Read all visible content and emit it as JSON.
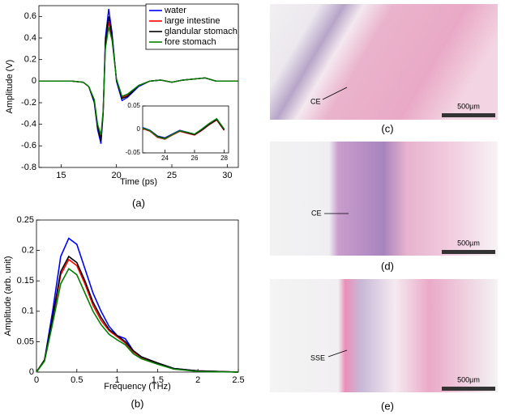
{
  "chart_data": [
    {
      "type": "line",
      "caption": "(a)",
      "x_label": "Time (ps)",
      "y_label": "Amplitude (V)",
      "x": [
        13,
        14,
        15,
        16,
        17,
        17.5,
        18,
        18.3,
        18.6,
        18.8,
        19,
        19.3,
        19.6,
        20,
        20.5,
        21,
        22,
        23,
        24,
        25,
        26,
        27,
        28,
        29,
        30,
        31
      ],
      "xlim": [
        13,
        31
      ],
      "ylim": [
        -0.8,
        0.7
      ],
      "xticks": [
        15,
        20,
        25,
        30
      ],
      "yticks": [
        -0.8,
        -0.6,
        -0.4,
        -0.2,
        0,
        0.2,
        0.4,
        0.6
      ],
      "legend": "upper right",
      "series": [
        {
          "name": "water",
          "color": "#0000ff",
          "values": [
            0,
            0,
            0,
            0,
            -0.01,
            -0.05,
            -0.2,
            -0.45,
            -0.58,
            -0.3,
            0.4,
            0.67,
            0.45,
            0,
            -0.18,
            -0.15,
            -0.05,
            0,
            0.01,
            -0.01,
            0.01,
            0.02,
            0.03,
            0,
            0,
            0
          ]
        },
        {
          "name": "large intestine",
          "color": "#ff0000",
          "values": [
            0,
            0,
            0,
            0,
            -0.01,
            -0.05,
            -0.18,
            -0.42,
            -0.53,
            -0.28,
            0.33,
            0.55,
            0.4,
            0.02,
            -0.15,
            -0.13,
            -0.04,
            0,
            0.01,
            -0.01,
            0.01,
            0.02,
            0.03,
            0,
            0,
            0
          ]
        },
        {
          "name": "glandular stomach",
          "color": "#000000",
          "values": [
            0,
            0,
            0,
            0,
            -0.01,
            -0.05,
            -0.19,
            -0.43,
            -0.55,
            -0.29,
            0.36,
            0.6,
            0.42,
            0.01,
            -0.16,
            -0.14,
            -0.04,
            0,
            0.01,
            -0.01,
            0.01,
            0.02,
            0.03,
            0,
            0,
            0
          ]
        },
        {
          "name": "fore stomach",
          "color": "#008000",
          "values": [
            0,
            0,
            0,
            0,
            -0.01,
            -0.05,
            -0.17,
            -0.4,
            -0.5,
            -0.27,
            0.3,
            0.5,
            0.38,
            0.02,
            -0.14,
            -0.12,
            -0.04,
            0,
            0.01,
            -0.01,
            0.01,
            0.02,
            0.03,
            0,
            0,
            0
          ]
        }
      ]
    },
    {
      "type": "line",
      "x": [
        22.5,
        23,
        23.5,
        24,
        24.5,
        25,
        25.5,
        26,
        26.5,
        27,
        27.5,
        28
      ],
      "xlim": [
        22.5,
        28.3
      ],
      "ylim": [
        -0.05,
        0.05
      ],
      "xticks": [
        24,
        26,
        28
      ],
      "yticks": [
        -0.05,
        0,
        0.05
      ],
      "series": [
        {
          "color": "#0000ff",
          "values": [
            0.004,
            -0.002,
            -0.014,
            -0.018,
            -0.01,
            -0.002,
            -0.006,
            -0.01,
            0,
            0.012,
            0.022,
            0
          ]
        },
        {
          "color": "#ff0000",
          "values": [
            0.002,
            -0.004,
            -0.017,
            -0.021,
            -0.012,
            -0.004,
            -0.008,
            -0.012,
            -0.002,
            0.01,
            0.02,
            -0.002
          ]
        },
        {
          "color": "#000000",
          "values": [
            0.003,
            -0.003,
            -0.015,
            -0.019,
            -0.011,
            -0.003,
            -0.007,
            -0.011,
            -0.001,
            0.011,
            0.021,
            -0.001
          ]
        },
        {
          "color": "#008000",
          "values": [
            0.003,
            -0.003,
            -0.016,
            -0.02,
            -0.011,
            -0.003,
            -0.006,
            -0.01,
            0.001,
            0.013,
            0.023,
            0.001
          ]
        }
      ]
    },
    {
      "type": "line",
      "caption": "(b)",
      "x_label": "Frequency (THz)",
      "y_label": "Amplitude (arb. unit)",
      "x": [
        0,
        0.1,
        0.2,
        0.3,
        0.4,
        0.5,
        0.6,
        0.7,
        0.8,
        0.9,
        1.0,
        1.1,
        1.2,
        1.3,
        1.5,
        1.7,
        2,
        2.5
      ],
      "xlim": [
        0,
        2.5
      ],
      "ylim": [
        0,
        0.25
      ],
      "xticks": [
        0,
        0.5,
        1,
        1.5,
        2,
        2.5
      ],
      "yticks": [
        0,
        0.05,
        0.1,
        0.15,
        0.2,
        0.25
      ],
      "series": [
        {
          "color": "#0000ff",
          "values": [
            0,
            0.02,
            0.1,
            0.19,
            0.22,
            0.21,
            0.17,
            0.13,
            0.1,
            0.075,
            0.06,
            0.055,
            0.035,
            0.025,
            0.015,
            0.006,
            0.002,
            0
          ]
        },
        {
          "color": "#ff0000",
          "values": [
            0,
            0.02,
            0.088,
            0.16,
            0.185,
            0.175,
            0.145,
            0.11,
            0.085,
            0.068,
            0.058,
            0.048,
            0.033,
            0.024,
            0.014,
            0.005,
            0.002,
            0
          ]
        },
        {
          "color": "#000000",
          "values": [
            0,
            0.02,
            0.09,
            0.165,
            0.19,
            0.18,
            0.15,
            0.115,
            0.09,
            0.07,
            0.06,
            0.05,
            0.035,
            0.025,
            0.015,
            0.006,
            0.002,
            0
          ]
        },
        {
          "color": "#008000",
          "values": [
            0,
            0.018,
            0.08,
            0.145,
            0.17,
            0.16,
            0.13,
            0.1,
            0.078,
            0.062,
            0.053,
            0.045,
            0.03,
            0.022,
            0.013,
            0.005,
            0.001,
            0
          ]
        }
      ]
    }
  ],
  "panels": [
    {
      "caption": "(c)",
      "annotation": "CE",
      "scale_bar": "500µm"
    },
    {
      "caption": "(d)",
      "annotation": "CE",
      "scale_bar": "500µm"
    },
    {
      "caption": "(e)",
      "annotation": "SSE",
      "scale_bar": "500µm"
    }
  ]
}
